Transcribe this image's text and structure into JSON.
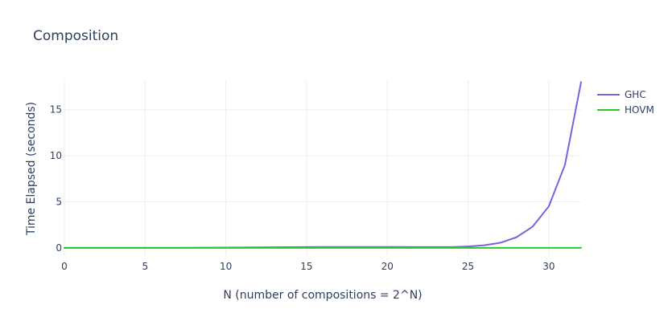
{
  "chart_data": {
    "type": "line",
    "title": "Composition",
    "xlabel": "N (number of compositions = 2^N)",
    "ylabel": "Time Elapsed (seconds)",
    "xlim": [
      0,
      32
    ],
    "ylim": [
      -0.8,
      18.2
    ],
    "x_ticks": [
      0,
      5,
      10,
      15,
      20,
      25,
      30
    ],
    "y_ticks": [
      0,
      5,
      10,
      15
    ],
    "grid": true,
    "legend_position": "top-right",
    "x": [
      0,
      1,
      2,
      3,
      4,
      5,
      6,
      7,
      8,
      9,
      10,
      11,
      12,
      13,
      14,
      15,
      16,
      17,
      18,
      19,
      20,
      21,
      22,
      23,
      24,
      25,
      26,
      27,
      28,
      29,
      30,
      31,
      32
    ],
    "series": [
      {
        "name": "GHC",
        "color": "#7b61e0",
        "values": [
          0,
          0,
          0,
          0,
          0,
          0,
          0,
          0,
          0.01,
          0.02,
          0.03,
          0.04,
          0.05,
          0.06,
          0.07,
          0.08,
          0.09,
          0.09,
          0.09,
          0.09,
          0.09,
          0.09,
          0.08,
          0.08,
          0.08,
          0.15,
          0.28,
          0.55,
          1.15,
          2.3,
          4.5,
          9.0,
          18.0
        ]
      },
      {
        "name": "HOVM",
        "color": "#2fc52f",
        "values": [
          0,
          0,
          0,
          0,
          0,
          0,
          0,
          0,
          0,
          0,
          0,
          0,
          0,
          0,
          0,
          0,
          0,
          0,
          0,
          0,
          0,
          0,
          0,
          0,
          0,
          0,
          0,
          0,
          0,
          0,
          0,
          0,
          0
        ]
      }
    ]
  }
}
